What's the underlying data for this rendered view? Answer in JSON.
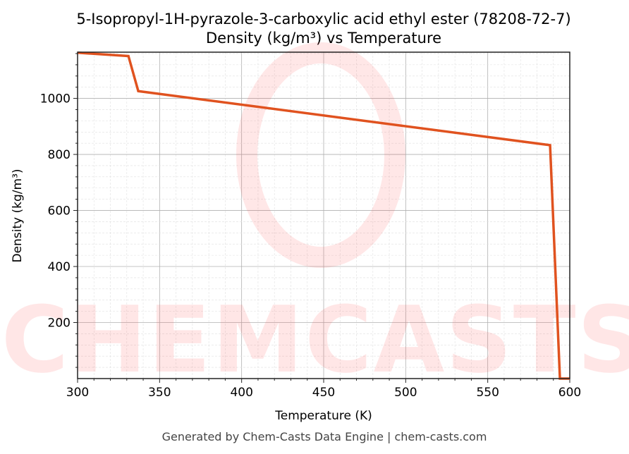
{
  "chart_data": {
    "type": "line",
    "title": "5-Isopropyl-1H-pyrazole-3-carboxylic acid ethyl ester (78208-72-7)",
    "subtitle": "Density (kg/m³) vs Temperature",
    "xlabel": "Temperature (K)",
    "ylabel": "Density (kg/m³)",
    "xlim": [
      300,
      600
    ],
    "ylim": [
      0,
      1165
    ],
    "xticks": [
      300,
      350,
      400,
      450,
      500,
      550,
      600
    ],
    "yticks": [
      200,
      400,
      600,
      800,
      1000
    ],
    "grid": true,
    "series": [
      {
        "x": [
          300,
          331,
          337,
          588,
          594,
          600
        ],
        "y": [
          1163,
          1151,
          1026,
          833,
          0,
          0
        ],
        "color": "#e0521f"
      }
    ],
    "watermark": "CHEMCASTS",
    "footer": "Generated by Chem-Casts Data Engine | chem-casts.com"
  }
}
